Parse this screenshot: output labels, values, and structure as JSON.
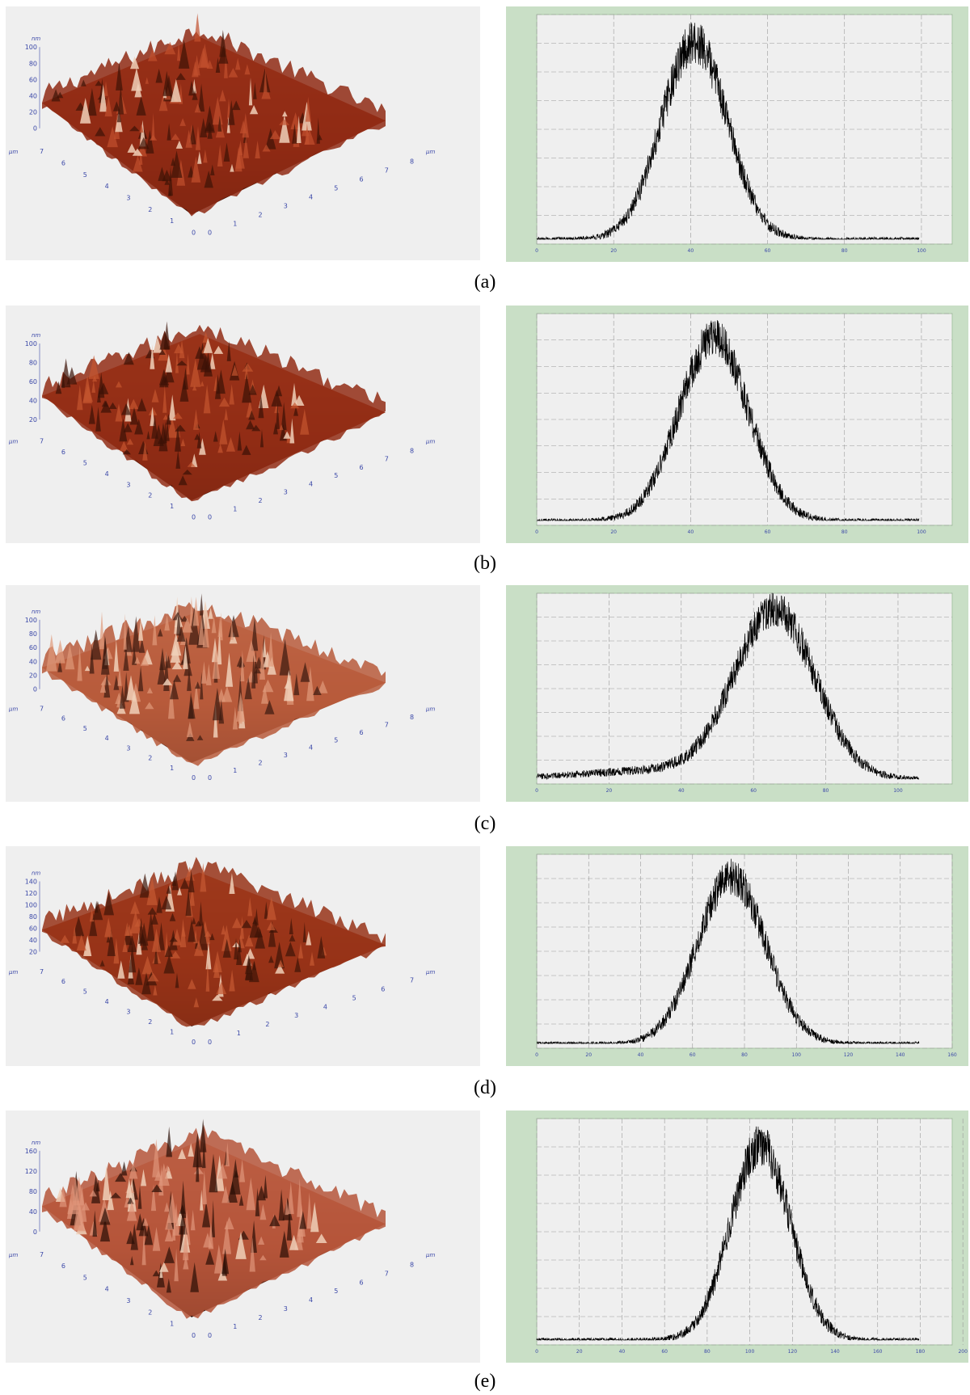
{
  "units": {
    "z": "nm",
    "xy": "µm"
  },
  "panels": [
    {
      "caption": "(a)",
      "z_ticks": [
        "0",
        "20",
        "40",
        "60",
        "80",
        "100"
      ],
      "y_ticks": [
        "0",
        "1",
        "2",
        "3",
        "4",
        "5",
        "6",
        "7"
      ],
      "x_ticks": [
        "0",
        "1",
        "2",
        "3",
        "4",
        "5",
        "6",
        "7",
        "8"
      ],
      "hist_x_ticks": [
        "0",
        "20",
        "40",
        "60",
        "80",
        "100"
      ],
      "chart_data": {
        "type": "line",
        "peak_center_nm": 41,
        "peak_width_nm": 8.5,
        "x_range": [
          0,
          108
        ]
      }
    },
    {
      "caption": "(b)",
      "z_ticks": [
        "20",
        "40",
        "60",
        "80",
        "100"
      ],
      "y_ticks": [
        "0",
        "1",
        "2",
        "3",
        "4",
        "5",
        "6",
        "7"
      ],
      "x_ticks": [
        "0",
        "1",
        "2",
        "3",
        "4",
        "5",
        "6",
        "7",
        "8"
      ],
      "hist_x_ticks": [
        "0",
        "20",
        "40",
        "60",
        "80",
        "100"
      ],
      "chart_data": {
        "type": "line",
        "peak_center_nm": 46,
        "peak_width_nm": 9,
        "x_range": [
          0,
          108
        ]
      }
    },
    {
      "caption": "(c)",
      "z_ticks": [
        "0",
        "20",
        "40",
        "60",
        "80",
        "100"
      ],
      "y_ticks": [
        "0",
        "1",
        "2",
        "3",
        "4",
        "5",
        "6",
        "7"
      ],
      "x_ticks": [
        "0",
        "1",
        "2",
        "3",
        "4",
        "5",
        "6",
        "7",
        "8"
      ],
      "hist_x_ticks": [
        "0",
        "20",
        "40",
        "60",
        "80",
        "100"
      ],
      "chart_data": {
        "type": "line",
        "peak_center_nm": 66,
        "peak_width_nm": 11,
        "x_range": [
          0,
          115
        ]
      }
    },
    {
      "caption": "(d)",
      "z_ticks": [
        "20",
        "40",
        "60",
        "80",
        "100",
        "120",
        "140"
      ],
      "y_ticks": [
        "0",
        "1",
        "2",
        "3",
        "4",
        "5",
        "6",
        "7"
      ],
      "x_ticks": [
        "0",
        "1",
        "2",
        "3",
        "4",
        "5",
        "6",
        "7"
      ],
      "hist_x_ticks": [
        "0",
        "20",
        "40",
        "60",
        "80",
        "100",
        "120",
        "140",
        "160"
      ],
      "chart_data": {
        "type": "line",
        "peak_center_nm": 75,
        "peak_width_nm": 13,
        "x_range": [
          0,
          160
        ]
      }
    },
    {
      "caption": "(e)",
      "z_ticks": [
        "0",
        "40",
        "80",
        "120",
        "160"
      ],
      "y_ticks": [
        "0",
        "1",
        "2",
        "3",
        "4",
        "5",
        "6",
        "7"
      ],
      "x_ticks": [
        "0",
        "1",
        "2",
        "3",
        "4",
        "5",
        "6",
        "7",
        "8"
      ],
      "hist_x_ticks": [
        "0",
        "20",
        "40",
        "60",
        "80",
        "100",
        "120",
        "140",
        "160",
        "180",
        "200"
      ],
      "chart_data": {
        "type": "line",
        "peak_center_nm": 105,
        "peak_width_nm": 14,
        "x_range": [
          0,
          195
        ]
      }
    }
  ]
}
